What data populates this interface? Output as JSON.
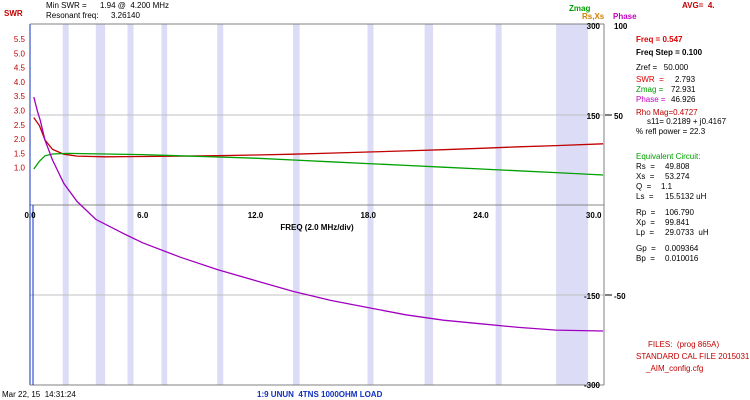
{
  "header": {
    "swr_axis_title": "SWR",
    "min_swr_label": "Min SWR =",
    "min_swr_value": "1.94 @  4.200 MHz",
    "resonant_label": "Resonant freq:",
    "resonant_value": "3.26140",
    "zmag_title": "Zmag",
    "rsxs_title": "Rs,Xs",
    "phase_title": "Phase",
    "avg": "AVG=  4."
  },
  "readout": {
    "freq": "Freq = 0.547",
    "freq_step": "Freq Step = 0.100",
    "zref": "Zref =   50.000",
    "swr_label": "SWR  =",
    "swr_value": "2.793",
    "zmag_label": "Zmag =",
    "zmag_value": "72.931",
    "phase_label": "Phase =",
    "phase_value": "46.926",
    "rho_mag": "Rho Mag=0.4727",
    "s11": "s11= 0.2189 + j0.4167",
    "refl_power": "% refl power = 22.3",
    "eq_title": "Equivalent Circuit:",
    "rs_label": "Rs  =",
    "rs_value": "49.808",
    "xs_label": "Xs  =",
    "xs_value": "53.274",
    "q_label": "Q  =",
    "q_value": "1.1",
    "ls_label": "Ls  =",
    "ls_value": "15.5132 uH",
    "rp_label": "Rp  =",
    "rp_value": "106.790",
    "xp_label": "Xp  =",
    "xp_value": "99.841",
    "lp_label": "Lp  =",
    "lp_value": "29.0733  uH",
    "gp_label": "Gp  =",
    "gp_value": "0.009364",
    "bp_label": "Bp  =",
    "bp_value": "0.010016"
  },
  "files": {
    "title": "FILES:  (prog 865A)",
    "cal": "STANDARD CAL FILE 2015031",
    "config": "_AIM_config.cfg"
  },
  "footer": {
    "timestamp": "Mar 22, 15  14:31:24",
    "title": "1:9 UNUN  4TNS 1000OHM LOAD"
  },
  "colors": {
    "swr": "#c00000",
    "zmag": "#00a000",
    "phase": "#a000c0",
    "band": "#dcdcf6",
    "grid": "#c0c0c0"
  },
  "chart_data": {
    "type": "line",
    "xlabel": "FREQ (2.0 MHz/div)",
    "x_ticks": [
      "0.0",
      "6.0",
      "12.0",
      "18.0",
      "24.0",
      "30.0"
    ],
    "xlim": [
      0,
      30.547
    ],
    "swr_axis": {
      "ticks": [
        "5.5",
        "5.0",
        "4.5",
        "4.0",
        "3.5",
        "3.0",
        "2.5",
        "2.0",
        "1.5",
        "1.0"
      ],
      "range": [
        1,
        5.5
      ]
    },
    "zmag_axis": {
      "ticks": [
        "300",
        "150"
      ],
      "range": [
        0,
        300
      ]
    },
    "rsxs_axis": {
      "ticks": [
        "150",
        "-150",
        "-300"
      ],
      "range": [
        -300,
        300
      ]
    },
    "phase_axis": {
      "ticks": [
        "100",
        "50",
        "-50"
      ],
      "range": [
        -100,
        100
      ]
    },
    "grid": true,
    "ham_bands_mhz": [
      [
        1.8,
        2.0
      ],
      [
        3.5,
        4.0
      ],
      [
        5.3,
        5.4
      ],
      [
        7.0,
        7.3
      ],
      [
        10.1,
        10.15
      ],
      [
        14.0,
        14.35
      ],
      [
        18.07,
        18.17
      ],
      [
        21.0,
        21.45
      ],
      [
        24.89,
        24.99
      ],
      [
        28.0,
        29.7
      ]
    ],
    "series": [
      {
        "name": "SWR",
        "x": [
          0.2,
          0.5,
          0.8,
          1.2,
          1.8,
          2.5,
          4.0,
          6.0,
          8.0,
          10.0,
          12.0,
          14.0,
          16.0,
          18.0,
          20.0,
          22.0,
          24.0,
          26.0,
          28.0,
          30.5
        ],
        "values": [
          3.0,
          2.79,
          2.4,
          2.15,
          2.02,
          1.97,
          1.95,
          1.96,
          1.97,
          1.98,
          2.0,
          2.02,
          2.05,
          2.08,
          2.11,
          2.14,
          2.18,
          2.22,
          2.25,
          2.3
        ]
      },
      {
        "name": "Zmag",
        "x": [
          0.2,
          0.5,
          0.8,
          1.2,
          2.0,
          4.0,
          6.0,
          8.0,
          10.0,
          12.0,
          14.0,
          16.0,
          18.0,
          20.0,
          22.0,
          24.0,
          26.0,
          28.0,
          30.5
        ],
        "values": [
          60,
          72.9,
          82,
          85,
          86,
          85,
          84,
          82,
          80,
          78,
          75,
          72,
          69,
          66,
          63,
          60,
          57,
          54,
          50
        ]
      },
      {
        "name": "Phase",
        "x": [
          0.2,
          0.4,
          0.547,
          0.8,
          1.2,
          1.8,
          2.5,
          3.5,
          5.0,
          6.0,
          8.0,
          10.0,
          12.0,
          14.0,
          16.0,
          18.0,
          20.0,
          22.0,
          24.0,
          26.0,
          28.0,
          30.5
        ],
        "values": [
          60,
          52,
          46.9,
          36,
          25,
          12,
          2,
          -8,
          -16,
          -21,
          -29,
          -36,
          -42,
          -48,
          -53,
          -57,
          -61,
          -64,
          -66,
          -68,
          -69.5,
          -70
        ]
      }
    ]
  }
}
